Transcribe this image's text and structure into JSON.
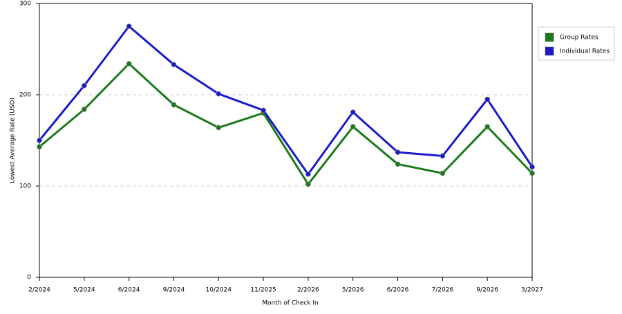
{
  "chart_data": {
    "type": "line",
    "x_label": "Month of Check In",
    "y_label": "Lowest Average Rate (USD)",
    "categories": [
      "2/2024",
      "5/2024",
      "6/2024",
      "9/2024",
      "10/2024",
      "11/2025",
      "2/2026",
      "5/2026",
      "6/2026",
      "7/2026",
      "9/2026",
      "3/2027"
    ],
    "series": [
      {
        "name": "Group Rates",
        "color": "#1a7a1a",
        "values": [
          143,
          184,
          234,
          189,
          164,
          180,
          102,
          165,
          124,
          114,
          165,
          114
        ]
      },
      {
        "name": "Individual Rates",
        "color": "#1a1acc",
        "values": [
          150,
          210,
          275,
          233,
          201,
          183,
          113,
          181,
          137,
          133,
          195,
          121
        ]
      }
    ],
    "ylim": [
      0,
      300
    ],
    "yticks": [
      0,
      100,
      200,
      300
    ],
    "grid": true,
    "legend": "right"
  }
}
